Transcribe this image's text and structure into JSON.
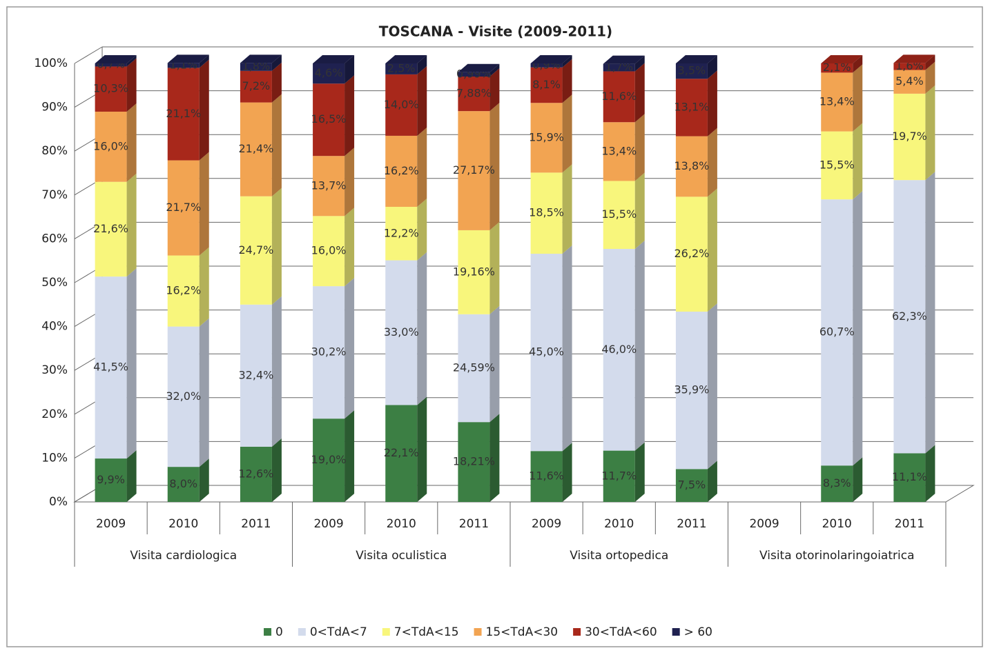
{
  "chart_data": {
    "type": "bar",
    "stacked": true,
    "title": "TOSCANA - Visite (2009-2011)",
    "categories": [
      "2009",
      "2010",
      "2011",
      "2009",
      "2010",
      "2011",
      "2009",
      "2010",
      "2011",
      "2009",
      "2010",
      "2011"
    ],
    "groups": [
      "Visita cardiologica",
      "Visita oculistica",
      "Visita ortopedica",
      "Visita otorinolaringoiatrica"
    ],
    "ylim": [
      0,
      100
    ],
    "yticks": [
      {
        "value": 0,
        "label": "0%"
      },
      {
        "value": 10,
        "label": "10%"
      },
      {
        "value": 20,
        "label": "20%"
      },
      {
        "value": 30,
        "label": "30%"
      },
      {
        "value": 40,
        "label": "40%"
      },
      {
        "value": 50,
        "label": "50%"
      },
      {
        "value": 60,
        "label": "60%"
      },
      {
        "value": 70,
        "label": "70%"
      },
      {
        "value": 80,
        "label": "80%"
      },
      {
        "value": 90,
        "label": "90%"
      },
      {
        "value": 100,
        "label": "100%"
      }
    ],
    "grid": true,
    "legend": "bottom",
    "series": [
      {
        "name": "0",
        "color": "#3c7f44",
        "values": [
          9.9,
          8.0,
          12.6,
          19.0,
          22.1,
          18.21,
          11.6,
          11.7,
          7.5,
          null,
          8.3,
          11.1
        ],
        "value_labels": [
          "9,9%",
          "8,0%",
          "12,6%",
          "19,0%",
          "22,1%",
          "18,21%",
          "11,6%",
          "11,7%",
          "7,5%",
          null,
          "8,3%",
          "11,1%"
        ]
      },
      {
        "name": "0<TdA<7",
        "color": "#d3dbec",
        "values": [
          41.5,
          32.0,
          32.4,
          30.2,
          33.0,
          24.59,
          45.0,
          46.0,
          35.9,
          null,
          60.7,
          62.3
        ],
        "value_labels": [
          "41,5%",
          "32,0%",
          "32,4%",
          "30,2%",
          "33,0%",
          "24,59%",
          "45,0%",
          "46,0%",
          "35,9%",
          null,
          "60,7%",
          "62,3%"
        ]
      },
      {
        "name": "7<TdA<15",
        "color": "#f8f67c",
        "values": [
          21.6,
          16.2,
          24.7,
          16.0,
          12.2,
          19.16,
          18.5,
          15.5,
          26.2,
          null,
          15.5,
          19.7
        ],
        "value_labels": [
          "21,6%",
          "16,2%",
          "24,7%",
          "16,0%",
          "12,2%",
          "19,16%",
          "18,5%",
          "15,5%",
          "26,2%",
          null,
          "15,5%",
          "19,7%"
        ]
      },
      {
        "name": "15<TdA<30",
        "color": "#f2a452",
        "values": [
          16.0,
          21.7,
          21.4,
          13.7,
          16.2,
          27.17,
          15.9,
          13.4,
          13.8,
          null,
          13.4,
          5.4
        ],
        "value_labels": [
          "16,0%",
          "21,7%",
          "21,4%",
          "13,7%",
          "16,2%",
          "27,17%",
          "15,9%",
          "13,4%",
          "13,8%",
          null,
          "13,4%",
          "5,4%"
        ]
      },
      {
        "name": "30<TdA<60",
        "color": "#a8281b",
        "values": [
          10.3,
          21.1,
          7.2,
          16.5,
          14.0,
          7.88,
          8.1,
          11.6,
          13.1,
          null,
          2.1,
          1.6
        ],
        "value_labels": [
          "10,3%",
          "21,1%",
          "7,2%",
          "16,5%",
          "14,0%",
          "7,88%",
          "8,1%",
          "11,6%",
          "13,1%",
          null,
          "2,1%",
          "1,6%"
        ]
      },
      {
        "name": "> 60",
        "color": "#1f2150",
        "values": [
          0.7,
          1.1,
          1.8,
          4.6,
          2.5,
          0.99,
          0.9,
          1.7,
          3.5,
          null,
          null,
          null
        ],
        "value_labels": [
          "0,7%",
          "1,1%",
          "1,8%",
          "4,6%",
          "2,5%",
          "0,99%",
          "0,9%",
          "1,7%",
          "3,5%",
          null,
          null,
          null
        ]
      }
    ]
  }
}
